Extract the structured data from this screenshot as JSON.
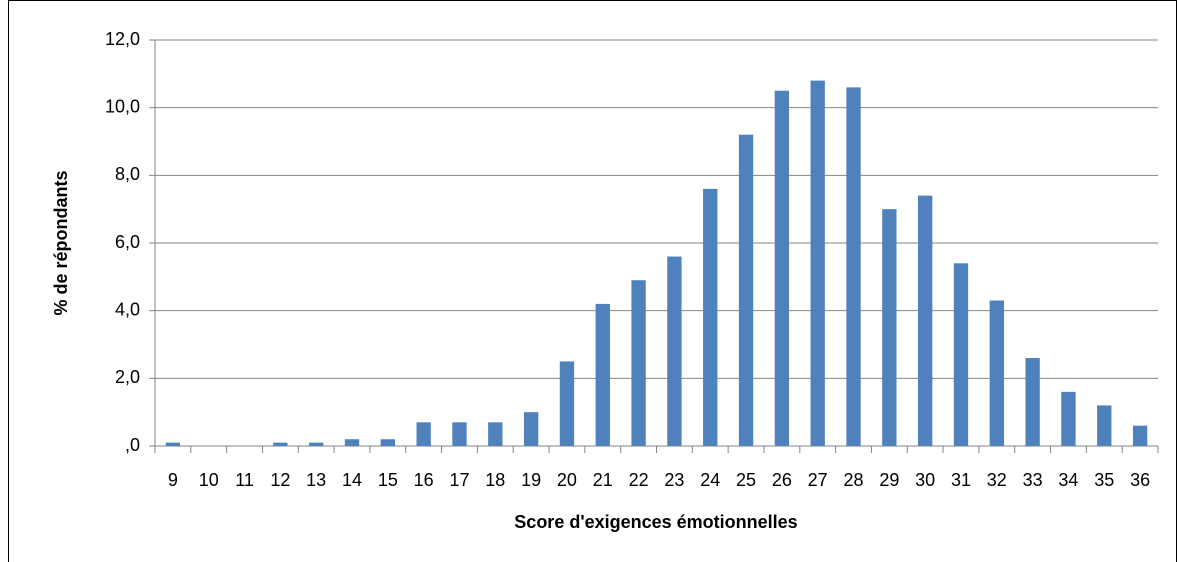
{
  "chart_data": {
    "type": "bar",
    "x_label": "Score d'exigences émotionnelles",
    "y_label": "% de répondants",
    "categories": [
      "9",
      "10",
      "11",
      "12",
      "13",
      "14",
      "15",
      "16",
      "17",
      "18",
      "19",
      "20",
      "21",
      "22",
      "23",
      "24",
      "25",
      "26",
      "27",
      "28",
      "29",
      "30",
      "31",
      "32",
      "33",
      "34",
      "35",
      "36"
    ],
    "values": [
      0.1,
      0,
      0,
      0.1,
      0.1,
      0.2,
      0.2,
      0.7,
      0.7,
      0.7,
      1.0,
      2.5,
      4.2,
      4.9,
      5.6,
      7.6,
      9.2,
      10.5,
      10.8,
      10.6,
      7.0,
      7.4,
      5.4,
      4.3,
      2.6,
      1.6,
      1.2,
      0.6
    ],
    "color": "#4f81bd",
    "ylim": [
      0,
      12
    ],
    "yticks": [
      {
        "value": 0,
        "label": ",0"
      },
      {
        "value": 2,
        "label": "2,0"
      },
      {
        "value": 4,
        "label": "4,0"
      },
      {
        "value": 6,
        "label": "6,0"
      },
      {
        "value": 8,
        "label": "8,0"
      },
      {
        "value": 10,
        "label": "10,0"
      },
      {
        "value": 12,
        "label": "12,0"
      }
    ],
    "grid": true
  }
}
